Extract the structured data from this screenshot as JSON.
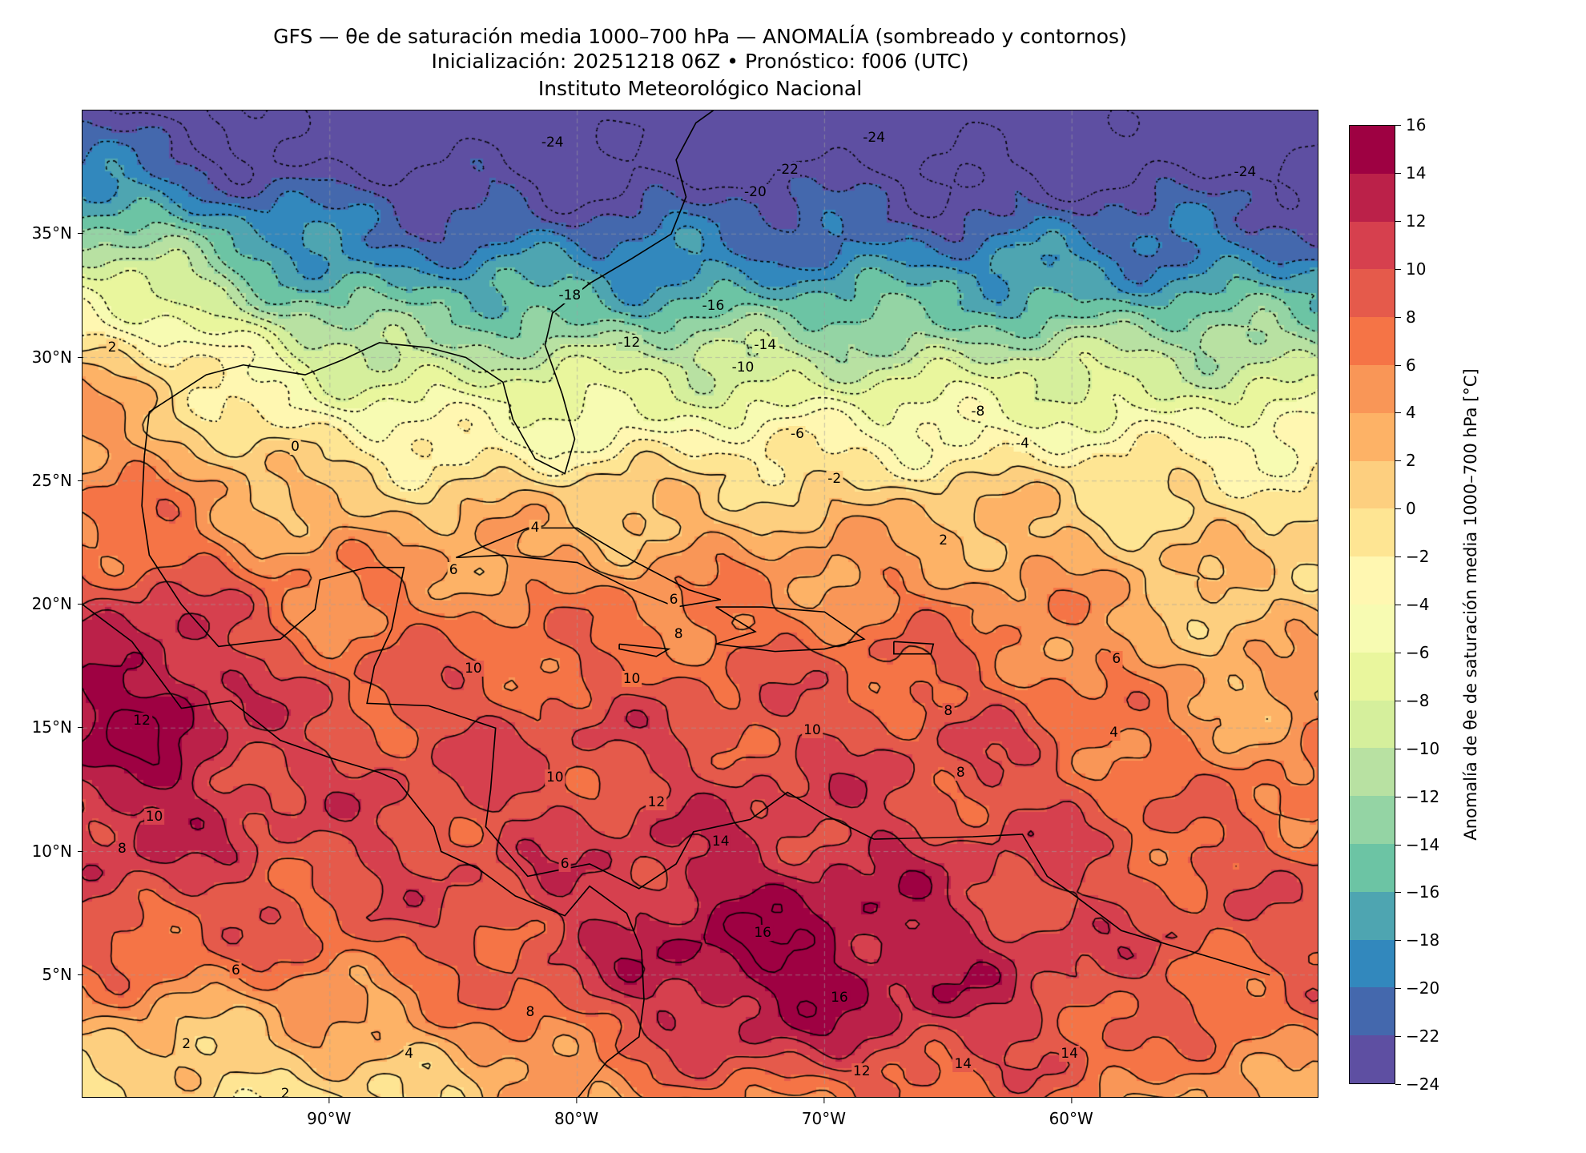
{
  "title": {
    "line1": "GFS — θe de saturación media 1000–700 hPa — ANOMALÍA (sombreado y contornos)",
    "line2": "Inicialización: 20251218 06Z   •   Pronóstico: f006 (UTC)",
    "line3": "Instituto Meteorológico Nacional"
  },
  "map": {
    "lon_range": [
      -100,
      -50
    ],
    "lat_range": [
      0,
      40
    ],
    "lat_ticks": [
      {
        "value": 35,
        "label": "35°N"
      },
      {
        "value": 30,
        "label": "30°N"
      },
      {
        "value": 25,
        "label": "25°N"
      },
      {
        "value": 20,
        "label": "20°N"
      },
      {
        "value": 15,
        "label": "15°N"
      },
      {
        "value": 10,
        "label": "10°N"
      },
      {
        "value": 5,
        "label": "5°N"
      }
    ],
    "lon_ticks": [
      {
        "value": -90,
        "label": "90°W"
      },
      {
        "value": -80,
        "label": "80°W"
      },
      {
        "value": -70,
        "label": "70°W"
      },
      {
        "value": -60,
        "label": "60°W"
      }
    ],
    "contour_labels": [
      {
        "text": "-24",
        "lon": -81,
        "lat": 38.7
      },
      {
        "text": "-24",
        "lon": -68,
        "lat": 38.9
      },
      {
        "text": "-24",
        "lon": -53,
        "lat": 37.5
      },
      {
        "text": "-22",
        "lon": -71.5,
        "lat": 37.6
      },
      {
        "text": "-20",
        "lon": -72.8,
        "lat": 36.7
      },
      {
        "text": "-18",
        "lon": -80.3,
        "lat": 32.5
      },
      {
        "text": "-16",
        "lon": -74.5,
        "lat": 32.1
      },
      {
        "text": "-14",
        "lon": -72.4,
        "lat": 30.5
      },
      {
        "text": "-12",
        "lon": -77.9,
        "lat": 30.6
      },
      {
        "text": "-10",
        "lon": -73.3,
        "lat": 29.6
      },
      {
        "text": "-8",
        "lon": -63.8,
        "lat": 27.8
      },
      {
        "text": "-6",
        "lon": -71.1,
        "lat": 26.9
      },
      {
        "text": "-4",
        "lon": -62,
        "lat": 26.5
      },
      {
        "text": "-2",
        "lon": -69.6,
        "lat": 25.1
      },
      {
        "text": "0",
        "lon": -91.4,
        "lat": 26.4
      },
      {
        "text": "2",
        "lon": -65.2,
        "lat": 22.6
      },
      {
        "text": "2",
        "lon": -98.8,
        "lat": 30.4
      },
      {
        "text": "4",
        "lon": -81.7,
        "lat": 23.1
      },
      {
        "text": "6",
        "lon": -85,
        "lat": 21.4
      },
      {
        "text": "6",
        "lon": -76.1,
        "lat": 20.2
      },
      {
        "text": "8",
        "lon": -75.9,
        "lat": 18.8
      },
      {
        "text": "10",
        "lon": -84.2,
        "lat": 17.4
      },
      {
        "text": "10",
        "lon": -77.8,
        "lat": 17
      },
      {
        "text": "10",
        "lon": -70.5,
        "lat": 14.9
      },
      {
        "text": "10",
        "lon": -80.9,
        "lat": 13
      },
      {
        "text": "12",
        "lon": -76.8,
        "lat": 12
      },
      {
        "text": "14",
        "lon": -74.2,
        "lat": 10.4
      },
      {
        "text": "16",
        "lon": -72.5,
        "lat": 6.7
      },
      {
        "text": "16",
        "lon": -69.4,
        "lat": 4.1
      },
      {
        "text": "14",
        "lon": -64.4,
        "lat": 1.4
      },
      {
        "text": "14",
        "lon": -60.1,
        "lat": 1.8
      },
      {
        "text": "12",
        "lon": -68.5,
        "lat": 1.1
      },
      {
        "text": "8",
        "lon": -65,
        "lat": 15.7
      },
      {
        "text": "8",
        "lon": -64.5,
        "lat": 13.2
      },
      {
        "text": "6",
        "lon": -80.5,
        "lat": 9.5
      },
      {
        "text": "6",
        "lon": -93.8,
        "lat": 5.2
      },
      {
        "text": "8",
        "lon": -81.9,
        "lat": 3.5
      },
      {
        "text": "6",
        "lon": -58.2,
        "lat": 17.8
      },
      {
        "text": "4",
        "lon": -58.3,
        "lat": 14.8
      },
      {
        "text": "2",
        "lon": -95.8,
        "lat": 2.2
      },
      {
        "text": "2",
        "lon": -91.8,
        "lat": 0.2
      },
      {
        "text": "4",
        "lon": -86.8,
        "lat": 1.8
      },
      {
        "text": "10",
        "lon": -97.1,
        "lat": 11.4
      },
      {
        "text": "8",
        "lon": -98.4,
        "lat": 10.1
      },
      {
        "text": "12",
        "lon": -97.6,
        "lat": 15.3
      }
    ]
  },
  "colorbar": {
    "label": "Anomalía de θe de saturación media 1000–700 hPa [°C]",
    "levels": [
      -24,
      -22,
      -20,
      -18,
      -16,
      -14,
      -12,
      -10,
      -8,
      -6,
      -4,
      -2,
      0,
      2,
      4,
      6,
      8,
      10,
      12,
      14,
      16
    ],
    "tick_labels": [
      "−24",
      "−22",
      "−20",
      "−18",
      "−16",
      "−14",
      "−12",
      "−10",
      "−8",
      "−6",
      "−4",
      "−2",
      "0",
      "2",
      "4",
      "6",
      "8",
      "10",
      "12",
      "14",
      "16"
    ],
    "colors": [
      "#5e4fa2",
      "#4468ad",
      "#3288bd",
      "#4ea5b1",
      "#6cc4a4",
      "#94d4a4",
      "#b8e1a2",
      "#d5ef9c",
      "#e9f69d",
      "#f7fbb2",
      "#fff7b1",
      "#fee593",
      "#fdcf7f",
      "#fdb266",
      "#f99657",
      "#f57446",
      "#e55a4b",
      "#d6404e",
      "#bb2149",
      "#9e0142"
    ]
  }
}
